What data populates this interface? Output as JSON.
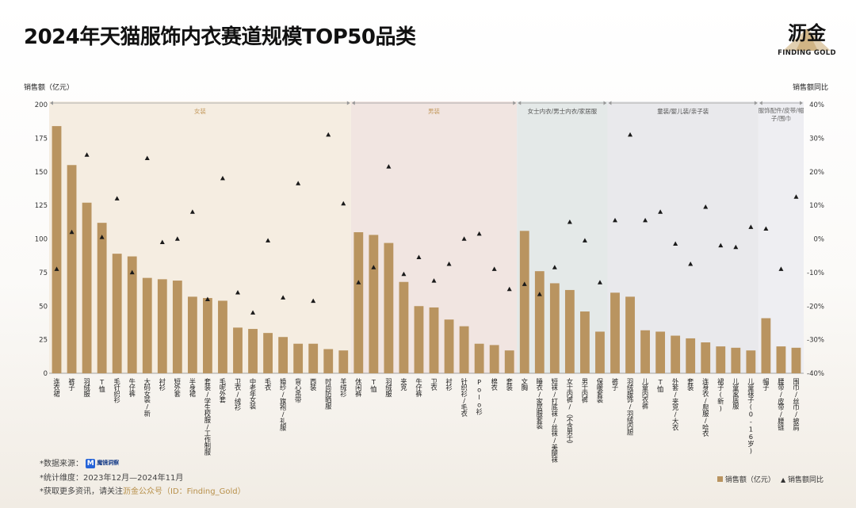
{
  "title": "2024年天猫服饰内衣赛道规模TOP50品类",
  "logo": {
    "main": "沥金",
    "sub": "FINDING GOLD"
  },
  "axes": {
    "left_title": "销售额（亿元）",
    "right_title": "销售额同比"
  },
  "footer": {
    "source_label": "*数据来源：",
    "source_brand": "魔镜洞察",
    "dimension": "*统计维度：2023年12月—2024年11月",
    "more_prefix": "*获取更多资讯，请关注",
    "more_highlight": "沥金公众号（ID：Finding_Gold）"
  },
  "legend": {
    "bar": "销售额（亿元）",
    "marker": "销售额同比"
  },
  "colors": {
    "bar": "#b99460",
    "marker": "#1a1a1a",
    "seg_women": "#f5ede1",
    "seg_men": "#f1e5e1",
    "seg_underwear": "#e4e9e8",
    "seg_kids": "#e9e9ec",
    "seg_acc": "#eeeef2",
    "label_women": "#c49a5e",
    "label_men": "#c49a5e",
    "label_underwear": "#555",
    "label_kids": "#555",
    "label_acc": "#666"
  },
  "chart_data": {
    "type": "bar",
    "left_axis": {
      "ylim": [
        0,
        200
      ],
      "ticks": [
        0,
        25,
        50,
        75,
        100,
        125,
        150,
        175,
        200
      ]
    },
    "right_axis": {
      "ylim": [
        -40,
        40
      ],
      "ticks": [
        "-40%",
        "-30%",
        "-20%",
        "-10%",
        "0%",
        "10%",
        "20%",
        "30%",
        "40%"
      ]
    },
    "segments": [
      {
        "name": "女装",
        "from": 0,
        "to": 19,
        "key": "women"
      },
      {
        "name": "男装",
        "from": 20,
        "to": 30,
        "key": "men"
      },
      {
        "name": "女士内衣/男士内衣/家居服",
        "from": 31,
        "to": 36,
        "key": "underwear"
      },
      {
        "name": "童装/婴儿装/亲子装",
        "from": 37,
        "to": 46,
        "key": "kids"
      },
      {
        "name": "服饰配件/皮带/帽子/围巾",
        "from": 47,
        "to": 49,
        "key": "acc"
      }
    ],
    "categories": [
      "连衣裙",
      "裤子",
      "羽绒服",
      "T恤",
      "毛针织衫",
      "牛仔裤",
      "大码女装/新",
      "衬衫",
      "短外套",
      "半身裙",
      "套装/学生校服/工作制服",
      "毛呢外套",
      "卫衣/绒衫",
      "中老年女装",
      "毛衣",
      "婚纱/旗袍/礼服",
      "背心吊带",
      "西装",
      "时尚防晒服",
      "羊绒衫",
      "休闲裤",
      "T恤",
      "羽绒服",
      "夹克",
      "牛仔裤",
      "卫衣",
      "衬衫",
      "针织衫/毛衣",
      "Polo衫",
      "棉衣",
      "套装",
      "文胸",
      "睡衣/家居服套装",
      "短袜/打底袜/丝袜/美腿袜",
      "女士内裤/（不含男士）",
      "男士内裤",
      "保暖套装",
      "裤子",
      "羽绒服饰/羽绒内胆",
      "儿童内衣裤",
      "T恤",
      "外套/夹克/大衣",
      "套装",
      "连身衣/爬服/哈衣",
      "裙子(新)",
      "儿童家居服",
      "儿童袜子(0-16岁)",
      "帽子",
      "腰带/皮带/腰链",
      "围巾/丝巾/披肩"
    ],
    "series": [
      {
        "name": "销售额（亿元）",
        "axis": "left",
        "values": [
          184,
          155,
          127,
          112,
          89,
          87,
          71,
          70,
          69,
          57,
          56,
          54,
          34,
          33,
          30,
          27,
          22,
          22,
          18,
          17,
          105,
          103,
          97,
          68,
          50,
          49,
          40,
          35,
          22,
          21,
          17,
          106,
          76,
          67,
          62,
          46,
          31,
          60,
          57,
          32,
          31,
          28,
          26,
          23,
          20,
          19,
          17,
          41,
          20,
          19
        ]
      },
      {
        "name": "销售额同比",
        "axis": "right",
        "values": [
          -9,
          2,
          25,
          0.5,
          12,
          -10,
          24,
          -1,
          0,
          8,
          -18,
          18,
          -16,
          -22,
          -0.5,
          -17.5,
          16.5,
          -18.5,
          31,
          10.5,
          -13,
          -8.5,
          21.5,
          -10.5,
          -5.5,
          -12.5,
          -7.5,
          0,
          1.5,
          -9,
          -15,
          -13.5,
          -16.5,
          -8.5,
          5,
          -0.5,
          -13,
          5.5,
          31,
          5.5,
          8,
          -1.5,
          -7.5,
          9.5,
          -2,
          -2.5,
          3.5,
          3,
          -9,
          12.5
        ]
      }
    ]
  }
}
